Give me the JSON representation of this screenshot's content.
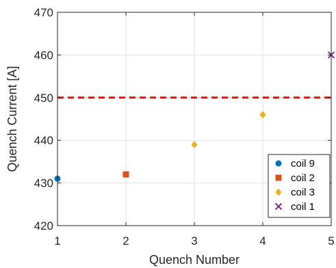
{
  "chart_data": {
    "type": "scatter",
    "xlabel": "Quench Number",
    "ylabel": "Quench Current [A]",
    "xlim": [
      1,
      5
    ],
    "ylim": [
      420,
      470
    ],
    "xticks": [
      1,
      2,
      3,
      4,
      5
    ],
    "yticks": [
      420,
      430,
      440,
      450,
      460,
      470
    ],
    "grid": true,
    "legend_position": "bottom-right",
    "series": [
      {
        "name": "coil 9",
        "marker": "circle",
        "color": "#0072BD",
        "x": [
          1
        ],
        "y": [
          431
        ]
      },
      {
        "name": "coil 2",
        "marker": "square",
        "color": "#D95319",
        "x": [
          2
        ],
        "y": [
          432
        ]
      },
      {
        "name": "coil 3",
        "marker": "diamond",
        "color": "#EDB120",
        "x": [
          3,
          4
        ],
        "y": [
          439,
          446
        ]
      },
      {
        "name": "coil 1",
        "marker": "x",
        "color": "#7E2F8E",
        "x": [
          5
        ],
        "y": [
          460
        ]
      }
    ],
    "reference_line": {
      "y": 450,
      "style": "dashed",
      "color": "#FF0000"
    }
  }
}
